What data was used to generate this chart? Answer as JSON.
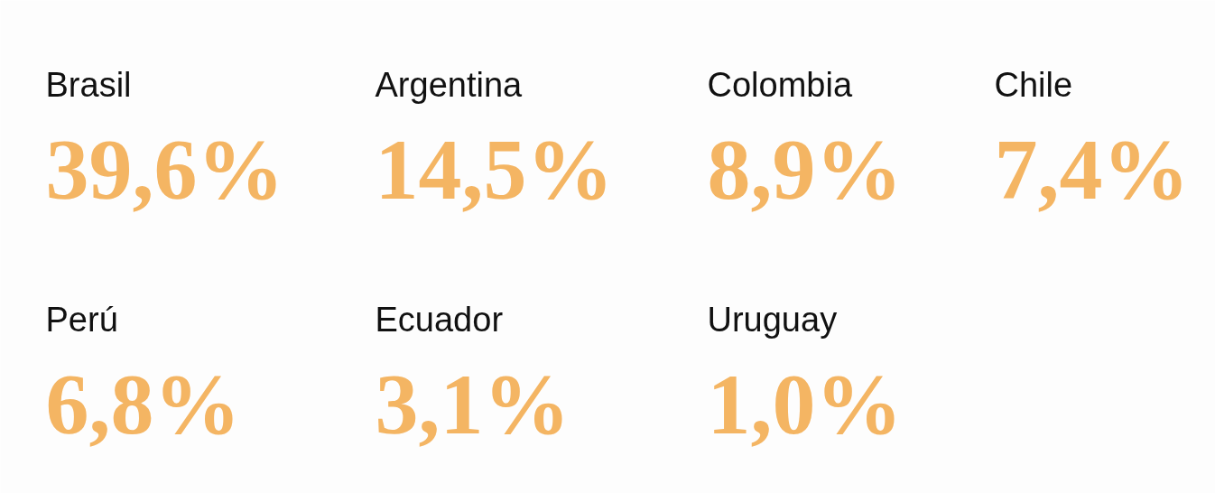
{
  "chart_data": {
    "type": "other",
    "categories": [
      "Brasil",
      "Argentina",
      "Colombia",
      "Chile",
      "Perú",
      "Ecuador",
      "Uruguay"
    ],
    "values": [
      39.6,
      14.5,
      8.9,
      7.4,
      6.8,
      3.1,
      1.0
    ],
    "value_labels": [
      "39,6%",
      "14,5%",
      "8,9%",
      "7,4%",
      "6,8%",
      "3,1%",
      "1,0%"
    ],
    "color": "#f4b563"
  }
}
